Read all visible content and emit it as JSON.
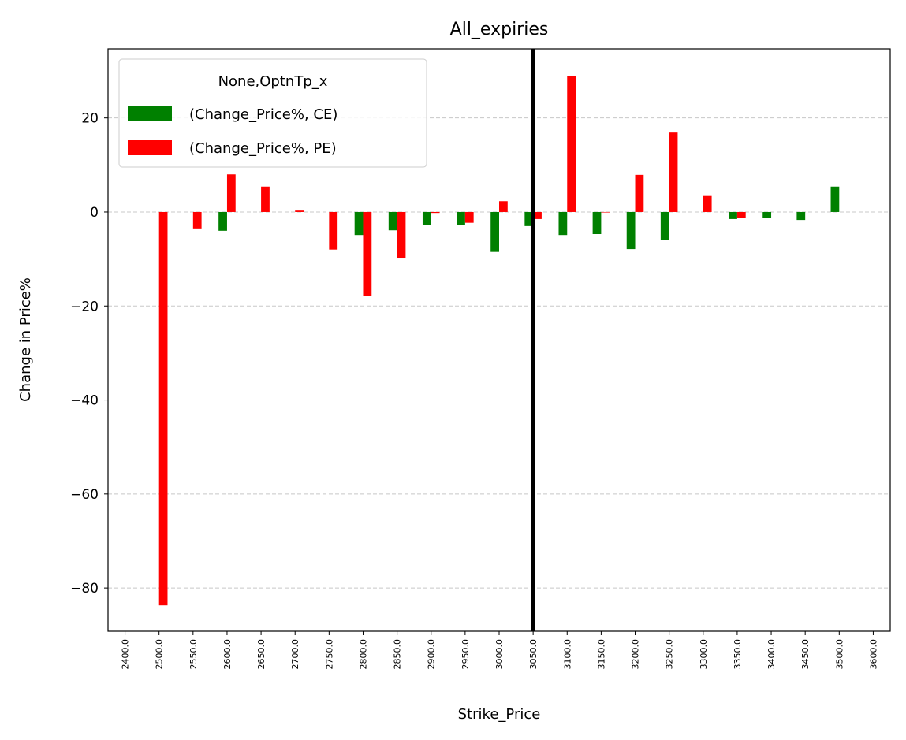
{
  "chart_data": {
    "type": "bar",
    "title": "All_expiries",
    "x_label": "Strike_Price",
    "y_label": "Change in Price%",
    "categories": [
      "2400.0",
      "2500.0",
      "2550.0",
      "2600.0",
      "2650.0",
      "2700.0",
      "2750.0",
      "2800.0",
      "2850.0",
      "2900.0",
      "2950.0",
      "3000.0",
      "3050.0",
      "3100.0",
      "3150.0",
      "3200.0",
      "3250.0",
      "3300.0",
      "3350.0",
      "3400.0",
      "3450.0",
      "3500.0",
      "3600.0"
    ],
    "series": [
      {
        "name": "(Change_Price%, CE)",
        "color": "#008000",
        "values": [
          null,
          null,
          null,
          -4.0,
          null,
          null,
          null,
          -4.9,
          -3.9,
          -2.8,
          -2.7,
          -8.5,
          -3.0,
          -4.9,
          -4.7,
          -7.9,
          -5.9,
          null,
          -1.5,
          -1.3,
          -1.7,
          5.4,
          null
        ]
      },
      {
        "name": "(Change_Price%, PE)",
        "color": "#ff0000",
        "values": [
          null,
          -83.7,
          -3.5,
          8.0,
          5.4,
          0.3,
          -8.0,
          -17.8,
          -9.9,
          -0.2,
          -2.3,
          2.3,
          -1.5,
          29.0,
          -0.1,
          7.9,
          16.9,
          3.4,
          -1.2,
          null,
          null,
          null,
          null
        ]
      }
    ],
    "legend_title": "None,OptnTp_x",
    "legend": "upper left",
    "ylim": [
      -89.2,
      34.7
    ],
    "yticks": [
      {
        "value": -80,
        "label": "−80"
      },
      {
        "value": -60,
        "label": "−60"
      },
      {
        "value": -40,
        "label": "−40"
      },
      {
        "value": -20,
        "label": "−20"
      },
      0,
      20
    ],
    "grid": true,
    "vline_at": "3050.0"
  }
}
